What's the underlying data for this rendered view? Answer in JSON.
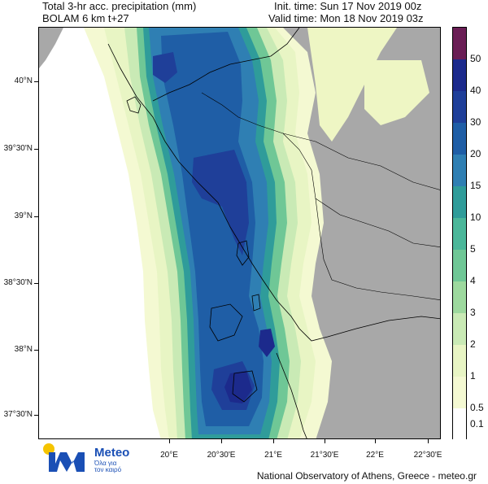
{
  "header": {
    "title_line1": "Total 3-hr acc. precipitation (mm)",
    "title_line2": "BOLAM 6 km t+27",
    "init_time": "Init. time: Sun 17 Nov 2019 00z",
    "valid_time": "Valid time: Mon 18 Nov 2019 03z"
  },
  "axes": {
    "lat_labels": [
      "40°N",
      "39°30'N",
      "39°N",
      "38°30'N",
      "38°N",
      "37°30'N"
    ],
    "lon_labels": [
      "20°E",
      "20°30'E",
      "21°E",
      "21°30'E",
      "22°E",
      "22°30'E"
    ]
  },
  "colorbar": {
    "levels": [
      "50",
      "40",
      "30",
      "20",
      "15",
      "10",
      "5",
      "4",
      "3",
      "2",
      "1",
      "0.5",
      "0.1"
    ],
    "colors": [
      "#6a1e55",
      "#1c2a8c",
      "#1f3f99",
      "#1f5ea6",
      "#2f7fb3",
      "#2f9c9a",
      "#4bb79a",
      "#6fc796",
      "#9dd99e",
      "#c9eab5",
      "#e8f5c4",
      "#f4f9d2",
      "#ffffff"
    ]
  },
  "map_colors": {
    "land": "#a8a8a8",
    "sea": "#ffffff",
    "border": "#000000"
  },
  "logo": {
    "name": "Meteo",
    "tagline1": "Όλα για",
    "tagline2": "τον καιρό"
  },
  "footer": {
    "credit": "National Observatory of Athens, Greece - meteo.gr"
  }
}
